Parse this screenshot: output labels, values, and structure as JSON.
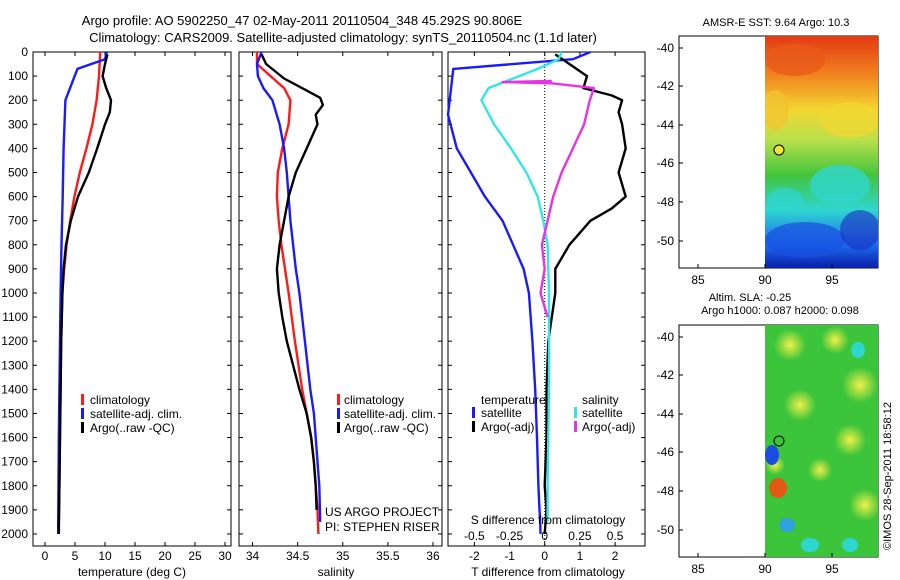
{
  "title_line1": "Argo profile: AO 5902250_47 02-May-2011 20110504_348 45.292S 90.806E",
  "title_line2": "Climatology: CARS2009. Satellite-adjusted climatology: synTS_20110504.nc (1.1d later)",
  "credit": {
    "project": "US ARGO PROJECT",
    "pi": "PI: STEPHEN RISER",
    "imos": "©IMOS 28-Sep-2011 18:58:12"
  },
  "colors": {
    "climatology": "#ff1a1a",
    "satellite": "#1a1aff",
    "argo": "#000000",
    "salinity_satellite": "#33e6e6",
    "salinity_argo": "#e633e6"
  },
  "chart_data": [
    {
      "type": "line",
      "id": "temperature",
      "xlabel": "temperature (deg C)",
      "xlim": [
        -2,
        31
      ],
      "ylim": [
        2050,
        0
      ],
      "xticks": [
        0,
        5,
        10,
        15,
        20,
        25,
        30
      ],
      "xtick_labels": [
        "0",
        "5",
        "10",
        "15",
        "20",
        "25",
        "30"
      ],
      "yticks": [
        0,
        100,
        200,
        300,
        400,
        500,
        600,
        700,
        800,
        900,
        1000,
        1100,
        1200,
        1300,
        1400,
        1500,
        1600,
        1700,
        1800,
        1900,
        2000
      ],
      "ytick_labels": [
        "0",
        "100",
        "200",
        "300",
        "400",
        "500",
        "600",
        "700",
        "800",
        "900",
        "1000",
        "1100",
        "1200",
        "1300",
        "1400",
        "1500",
        "1600",
        "1700",
        "1800",
        "1900",
        "2000"
      ],
      "legend": [
        "climatology",
        "satellite-adj. clim.",
        "Argo(..raw -QC)"
      ],
      "series": [
        {
          "name": "climatology",
          "color_key": "climatology",
          "x": [
            9.2,
            9.1,
            9.0,
            8.6,
            7.9,
            6.9,
            5.8,
            4.9,
            4.2,
            3.6,
            3.2,
            2.9,
            2.7,
            2.6,
            2.5,
            2.4,
            2.3,
            2.3
          ],
          "y": [
            0,
            50,
            100,
            200,
            300,
            400,
            500,
            600,
            700,
            800,
            900,
            1000,
            1200,
            1400,
            1600,
            1800,
            1950,
            2000
          ]
        },
        {
          "name": "satellite-adj. clim.",
          "color_key": "satellite",
          "x": [
            10.3,
            10.0,
            5.4,
            3.4,
            3.1,
            2.95,
            2.75,
            2.6,
            2.5,
            2.4,
            2.3,
            2.25,
            2.2,
            2.2
          ],
          "y": [
            0,
            30,
            70,
            200,
            400,
            600,
            800,
            1000,
            1200,
            1400,
            1600,
            1800,
            1950,
            2000
          ]
        },
        {
          "name": "Argo(..raw -QC)",
          "color_key": "argo",
          "x": [
            10.4,
            10.0,
            9.6,
            10.2,
            11.0,
            10.8,
            10.0,
            8.7,
            7.3,
            5.5,
            4.3,
            3.5,
            3.1,
            2.9,
            2.7,
            2.6,
            2.5,
            2.4,
            2.3
          ],
          "y": [
            10,
            50,
            100,
            150,
            200,
            250,
            300,
            400,
            500,
            600,
            700,
            800,
            900,
            1000,
            1200,
            1400,
            1600,
            1800,
            2000
          ]
        }
      ]
    },
    {
      "type": "line",
      "id": "salinity",
      "xlabel": "salinity",
      "xlim": [
        33.85,
        36.1
      ],
      "ylim": [
        2050,
        0
      ],
      "xticks": [
        34,
        34.5,
        35,
        35.5,
        36
      ],
      "xtick_labels": [
        "34",
        "34.5",
        "35",
        "35.5",
        "36"
      ],
      "legend": [
        "climatology",
        "satellite-adj. clim.",
        "Argo(..raw -QC)"
      ],
      "series": [
        {
          "name": "climatology",
          "color_key": "climatology",
          "x": [
            34.05,
            34.05,
            34.2,
            34.35,
            34.42,
            34.4,
            34.33,
            34.28,
            34.27,
            34.29,
            34.32,
            34.36,
            34.4,
            34.47,
            34.55,
            34.6,
            34.65,
            34.68,
            34.7,
            34.72,
            34.73
          ],
          "y": [
            0,
            50,
            100,
            150,
            200,
            300,
            400,
            500,
            600,
            700,
            800,
            900,
            1000,
            1200,
            1400,
            1500,
            1600,
            1700,
            1800,
            1900,
            2000
          ]
        },
        {
          "name": "satellite-adj. clim.",
          "color_key": "satellite",
          "x": [
            34.1,
            34.05,
            34.06,
            34.12,
            34.22,
            34.3,
            34.35,
            34.38,
            34.4,
            34.42,
            34.45,
            34.48,
            34.52,
            34.58,
            34.64,
            34.68,
            34.7,
            34.72,
            34.74,
            34.75
          ],
          "y": [
            0,
            50,
            100,
            150,
            200,
            300,
            400,
            500,
            600,
            700,
            800,
            900,
            1000,
            1200,
            1400,
            1500,
            1600,
            1700,
            1800,
            1950
          ]
        },
        {
          "name": "Argo(..raw -QC)",
          "color_key": "argo",
          "x": [
            34.1,
            34.15,
            34.35,
            34.6,
            34.75,
            34.78,
            34.7,
            34.72,
            34.6,
            34.48,
            34.4,
            34.35,
            34.3,
            34.27,
            34.29,
            34.33,
            34.38,
            34.45,
            34.52,
            34.6,
            34.65,
            34.68,
            34.7,
            34.71
          ],
          "y": [
            10,
            50,
            110,
            160,
            190,
            220,
            260,
            300,
            400,
            500,
            600,
            700,
            800,
            900,
            1000,
            1100,
            1200,
            1300,
            1400,
            1500,
            1600,
            1700,
            1800,
            1900
          ]
        }
      ]
    },
    {
      "type": "line",
      "id": "difference",
      "xlabel": "T difference from climatology",
      "xlabel_top": "S difference from climatology",
      "xlim": [
        -2.75,
        2.85
      ],
      "ylim": [
        2050,
        0
      ],
      "xticks": [
        -2,
        -1,
        0,
        1,
        2
      ],
      "xtick_labels": [
        "-2",
        "-1",
        "0",
        "1",
        "2"
      ],
      "sticks": [
        -0.5,
        -0.25,
        0,
        0.25,
        0.5
      ],
      "stick_labels": [
        "-0.5",
        "-0.25",
        "0",
        "0.25",
        "0.5"
      ],
      "s_scale": 4,
      "legend_heads": [
        "temperature",
        "salinity"
      ],
      "legend": [
        "satellite",
        "Argo(-adj)",
        "satellite",
        "Argo(-adj)"
      ],
      "series": [
        {
          "name": "temperature satellite",
          "color_key": "satellite",
          "x": [
            1.3,
            0.8,
            -2.6,
            -2.9,
            -2.5,
            -2.1,
            -1.7,
            -1.2,
            -0.9,
            -0.6,
            -0.45,
            -0.35,
            -0.27,
            -0.22,
            -0.18,
            -0.15,
            -0.13,
            -0.12
          ],
          "y": [
            0,
            30,
            70,
            260,
            400,
            500,
            600,
            700,
            800,
            900,
            1000,
            1200,
            1400,
            1600,
            1800,
            1900,
            1950,
            2000
          ]
        },
        {
          "name": "temperature Argo(-adj)",
          "color_key": "argo",
          "x": [
            0.3,
            0.7,
            1.2,
            1.1,
            1.9,
            2.2,
            2.1,
            2.2,
            2.3,
            2.1,
            2.3,
            1.9,
            1.3,
            0.7,
            0.3,
            0.3,
            0.2,
            0.1,
            0.05,
            0.05,
            0.0,
            0.05,
            0.0
          ],
          "y": [
            10,
            50,
            100,
            150,
            180,
            200,
            250,
            300,
            400,
            500,
            600,
            650,
            700,
            800,
            900,
            1000,
            1100,
            1200,
            1400,
            1600,
            1800,
            1900,
            2000
          ]
        },
        {
          "name": "salinity satellite",
          "color_key": "salinity_satellite",
          "x": [
            0.12,
            0.1,
            -0.05,
            -0.4,
            -0.45,
            -0.36,
            -0.24,
            -0.13,
            -0.05,
            -0.01,
            0.02,
            0.03,
            0.03,
            0.02,
            0.02
          ],
          "y": [
            0,
            30,
            70,
            150,
            200,
            300,
            400,
            500,
            600,
            700,
            800,
            1000,
            1400,
            1800,
            1950
          ]
        },
        {
          "name": "salinity Argo(-adj)",
          "color_key": "salinity_argo",
          "x": [
            0.05,
            -0.3,
            0.05,
            0.35,
            0.32,
            0.28,
            0.2,
            0.12,
            0.06,
            0.02,
            -0.02,
            0.0,
            -0.03,
            0.02
          ],
          "y": [
            120,
            125,
            130,
            150,
            200,
            300,
            400,
            500,
            600,
            700,
            800,
            900,
            1000,
            1100
          ]
        }
      ]
    }
  ],
  "maps": [
    {
      "title": "AMSR-E SST: 9.64 Argo: 10.3",
      "xticks": [
        "85",
        "90",
        "95"
      ],
      "yticks": [
        "-40",
        "-42",
        "-44",
        "-46",
        "-48",
        "-50"
      ]
    },
    {
      "title": "Altim. SLA: -0.25",
      "subtitle": "Argo h1000: 0.087 h2000: 0.098",
      "xticks": [
        "85",
        "90",
        "95"
      ],
      "yticks": [
        "-40",
        "-42",
        "-44",
        "-46",
        "-48",
        "-50"
      ]
    }
  ]
}
